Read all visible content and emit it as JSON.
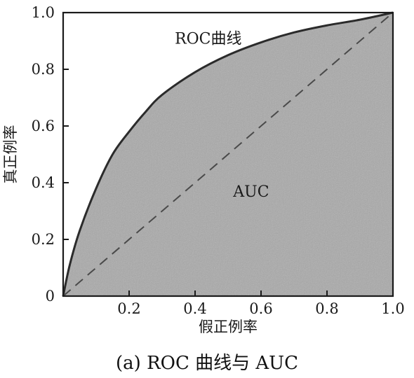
{
  "caption": "(a) ROC 曲线与 AUC",
  "chart_data": {
    "type": "area",
    "title": "",
    "xlabel": "假正例率",
    "ylabel": "真正例率",
    "xlim": [
      0,
      1
    ],
    "ylim": [
      0,
      1
    ],
    "x_ticks": [
      "0.2",
      "0.4",
      "0.6",
      "0.8",
      "1.0"
    ],
    "y_ticks": [
      "0",
      "0.2",
      "0.4",
      "0.6",
      "0.8",
      "1.0"
    ],
    "grid": false,
    "series": [
      {
        "x": [
          0,
          0.02,
          0.05,
          0.1,
          0.15,
          0.2,
          0.25,
          0.3,
          0.4,
          0.5,
          0.6,
          0.7,
          0.8,
          0.9,
          1.0
        ],
        "y": [
          0,
          0.11,
          0.23,
          0.38,
          0.5,
          0.58,
          0.65,
          0.71,
          0.79,
          0.85,
          0.895,
          0.93,
          0.955,
          0.975,
          1.0
        ]
      },
      {
        "x": [
          0,
          1
        ],
        "y": [
          0,
          1
        ]
      }
    ],
    "annotations": [
      {
        "text": "ROC曲线",
        "x": 0.44,
        "y": 0.91
      },
      {
        "text": "AUC",
        "x": 0.57,
        "y": 0.37
      }
    ],
    "colors": {
      "fill": "#a9a9a9",
      "curve": "#2b2b2b",
      "diagonal": "#4a4a4a",
      "frame": "#1a1a1a"
    }
  }
}
